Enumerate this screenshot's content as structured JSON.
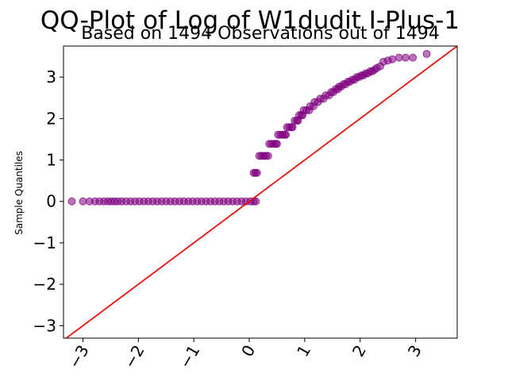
{
  "chart_data": {
    "type": "scatter",
    "title": "QQ-Plot of Log of W1dudit I-Plus-1",
    "subtitle": "Based on 1494 Observations out of 1494",
    "xlabel": "",
    "ylabel": "Sample Quantiles",
    "xlim": [
      -3.35,
      3.75
    ],
    "ylim": [
      -3.3,
      3.75
    ],
    "x_ticks": [
      -3,
      -2,
      -1,
      0,
      1,
      2,
      3
    ],
    "x_tick_labels": [
      "−3",
      "−2",
      "−1",
      "0",
      "1",
      "2",
      "3"
    ],
    "y_ticks": [
      -3,
      -2,
      -1,
      0,
      1,
      2,
      3
    ],
    "y_tick_labels": [
      "−3",
      "−2",
      "−1",
      "0",
      "1",
      "2",
      "3"
    ],
    "grid": false,
    "point_color": "#800080",
    "line_color": "#e8120c",
    "reference_line": {
      "slope": 1,
      "intercept": 0
    },
    "series": [
      {
        "points": [
          [
            -3.2,
            0
          ],
          [
            -3.0,
            0
          ],
          [
            -2.88,
            0
          ],
          [
            -2.78,
            0
          ],
          [
            -2.7,
            0
          ],
          [
            -2.62,
            0
          ],
          [
            -2.55,
            0
          ],
          [
            -2.49,
            0
          ],
          [
            -2.43,
            0
          ],
          [
            -2.37,
            0
          ],
          [
            -2.3,
            0
          ],
          [
            -2.22,
            0
          ],
          [
            -2.14,
            0
          ],
          [
            -2.06,
            0
          ],
          [
            -1.98,
            0
          ],
          [
            -1.9,
            0
          ],
          [
            -1.82,
            0
          ],
          [
            -1.74,
            0
          ],
          [
            -1.66,
            0
          ],
          [
            -1.58,
            0
          ],
          [
            -1.5,
            0
          ],
          [
            -1.42,
            0
          ],
          [
            -1.34,
            0
          ],
          [
            -1.26,
            0
          ],
          [
            -1.18,
            0
          ],
          [
            -1.1,
            0
          ],
          [
            -1.02,
            0
          ],
          [
            -0.94,
            0
          ],
          [
            -0.86,
            0
          ],
          [
            -0.78,
            0
          ],
          [
            -0.7,
            0
          ],
          [
            -0.62,
            0
          ],
          [
            -0.54,
            0
          ],
          [
            -0.46,
            0
          ],
          [
            -0.38,
            0
          ],
          [
            -0.3,
            0
          ],
          [
            -0.22,
            0
          ],
          [
            -0.14,
            0
          ],
          [
            -0.06,
            0
          ],
          [
            0.02,
            0
          ],
          [
            0.08,
            0
          ],
          [
            0.12,
            0
          ],
          [
            0.08,
            0.69
          ],
          [
            0.11,
            0.69
          ],
          [
            0.14,
            0.69
          ],
          [
            0.18,
            1.1
          ],
          [
            0.22,
            1.1
          ],
          [
            0.26,
            1.1
          ],
          [
            0.3,
            1.1
          ],
          [
            0.34,
            1.1
          ],
          [
            0.36,
            1.39
          ],
          [
            0.4,
            1.39
          ],
          [
            0.44,
            1.39
          ],
          [
            0.48,
            1.39
          ],
          [
            0.5,
            1.39
          ],
          [
            0.52,
            1.61
          ],
          [
            0.56,
            1.61
          ],
          [
            0.6,
            1.61
          ],
          [
            0.64,
            1.61
          ],
          [
            0.66,
            1.61
          ],
          [
            0.68,
            1.79
          ],
          [
            0.72,
            1.79
          ],
          [
            0.76,
            1.79
          ],
          [
            0.78,
            1.79
          ],
          [
            0.82,
            1.95
          ],
          [
            0.86,
            1.95
          ],
          [
            0.88,
            1.95
          ],
          [
            0.9,
            2.08
          ],
          [
            0.94,
            2.08
          ],
          [
            0.96,
            2.08
          ],
          [
            0.98,
            2.2
          ],
          [
            1.03,
            2.2
          ],
          [
            1.08,
            2.2
          ],
          [
            1.1,
            2.3
          ],
          [
            1.16,
            2.3
          ],
          [
            1.18,
            2.4
          ],
          [
            1.24,
            2.4
          ],
          [
            1.28,
            2.48
          ],
          [
            1.34,
            2.48
          ],
          [
            1.38,
            2.56
          ],
          [
            1.44,
            2.56
          ],
          [
            1.48,
            2.64
          ],
          [
            1.52,
            2.64
          ],
          [
            1.56,
            2.71
          ],
          [
            1.6,
            2.71
          ],
          [
            1.62,
            2.77
          ],
          [
            1.66,
            2.77
          ],
          [
            1.7,
            2.83
          ],
          [
            1.74,
            2.83
          ],
          [
            1.78,
            2.89
          ],
          [
            1.82,
            2.89
          ],
          [
            1.86,
            2.94
          ],
          [
            1.9,
            2.94
          ],
          [
            1.94,
            3.0
          ],
          [
            1.98,
            3.0
          ],
          [
            2.02,
            3.04
          ],
          [
            2.06,
            3.04
          ],
          [
            2.1,
            3.09
          ],
          [
            2.14,
            3.09
          ],
          [
            2.18,
            3.14
          ],
          [
            2.22,
            3.14
          ],
          [
            2.26,
            3.18
          ],
          [
            2.3,
            3.22
          ],
          [
            2.36,
            3.26
          ],
          [
            2.42,
            3.37
          ],
          [
            2.5,
            3.4
          ],
          [
            2.58,
            3.43
          ],
          [
            2.7,
            3.47
          ],
          [
            2.82,
            3.47
          ],
          [
            2.95,
            3.47
          ],
          [
            3.2,
            3.56
          ]
        ]
      }
    ]
  }
}
